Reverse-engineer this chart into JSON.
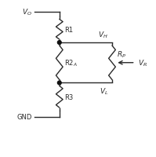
{
  "bg_color": "#ffffff",
  "border_color": "#aaaaaa",
  "wire_color": "#2a2a2a",
  "dot_color": "#111111",
  "figsize": [
    1.99,
    2.01
  ],
  "dpi": 100,
  "xlim": [
    0,
    10
  ],
  "ylim": [
    0,
    10
  ],
  "xL": 3.8,
  "xR": 7.2,
  "y_vo": 9.3,
  "y_r1t": 9.0,
  "y_r1b": 7.3,
  "y_r2t": 7.3,
  "y_r2b": 4.7,
  "y_r3t": 4.7,
  "y_r3b": 2.9,
  "y_gnd": 2.5,
  "lw": 1.0,
  "dot_r": 0.12,
  "resistor_amp": 0.22,
  "n_zigs": 4
}
